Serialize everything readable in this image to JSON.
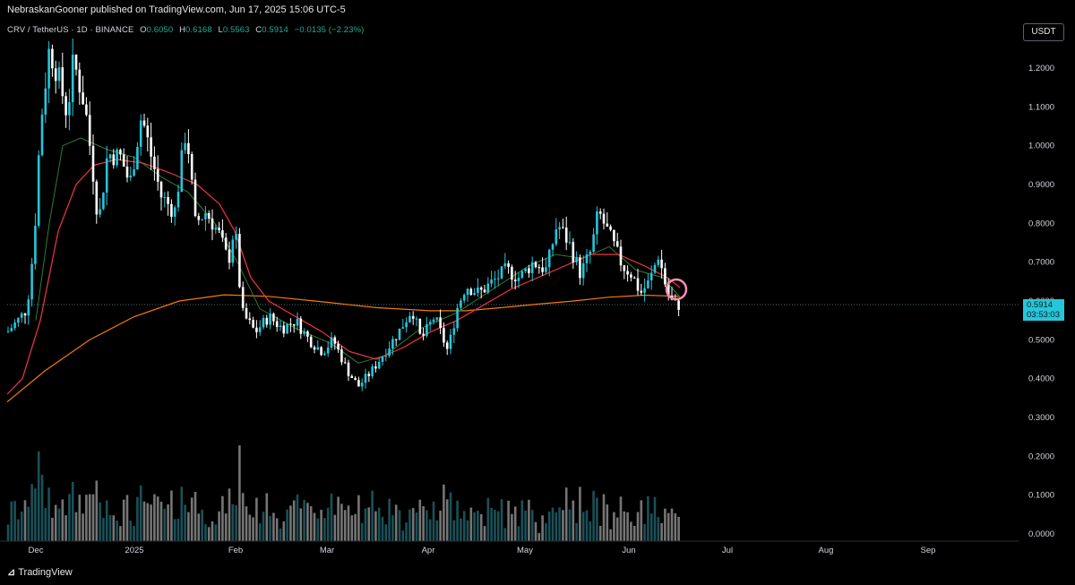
{
  "header": {
    "publisher": "NebraskanGooner published on TradingView.com, Jun 17, 2025 15:06 UTC-5"
  },
  "symbol": {
    "name": "CRV / TetherUS · 1D · BINANCE",
    "open_label": "O",
    "open": "0.6050",
    "high_label": "H",
    "high": "0.6168",
    "low_label": "L",
    "low": "0.5563",
    "close_label": "C",
    "close": "0.5914",
    "change": "−0.0135 (−2.23%)"
  },
  "currency": "USDT",
  "last_price": {
    "price": "0.5914",
    "countdown": "03:53:03"
  },
  "footer": {
    "brand": "TradingView"
  },
  "colors": {
    "up": "#26c6da",
    "down": "#ffffff",
    "ma_short": "#f23645",
    "ma_mid": "#2e7d32",
    "ma_long": "#f57c00",
    "highlight": "#f48fb1"
  },
  "chart_data": {
    "type": "candlestick",
    "symbol": "CRV/USDT",
    "interval": "1D",
    "y_axis": {
      "ticks": [
        "1.2000",
        "1.1000",
        "1.0000",
        "0.9000",
        "0.8000",
        "0.7000",
        "0.6000",
        "0.5000",
        "0.4000",
        "0.3000",
        "0.2000",
        "0.1000",
        "0.0000"
      ],
      "ylim": [
        0.0,
        1.3
      ]
    },
    "x_axis": {
      "ticks": [
        "Dec",
        "2025",
        "Feb",
        "Mar",
        "Apr",
        "May",
        "Jun",
        "Jul",
        "Aug",
        "Sep"
      ]
    },
    "anchors": [
      {
        "x": 8,
        "p": 0.52
      },
      {
        "x": 20,
        "p": 0.55
      },
      {
        "x": 30,
        "p": 0.58
      },
      {
        "x": 38,
        "p": 0.75
      },
      {
        "x": 45,
        "p": 1.05
      },
      {
        "x": 55,
        "p": 1.25
      },
      {
        "x": 65,
        "p": 1.18
      },
      {
        "x": 75,
        "p": 1.08
      },
      {
        "x": 82,
        "p": 1.22
      },
      {
        "x": 95,
        "p": 1.1
      },
      {
        "x": 103,
        "p": 0.95
      },
      {
        "x": 110,
        "p": 0.8
      },
      {
        "x": 120,
        "p": 0.98
      },
      {
        "x": 135,
        "p": 0.97
      },
      {
        "x": 145,
        "p": 0.9
      },
      {
        "x": 158,
        "p": 1.08
      },
      {
        "x": 168,
        "p": 0.98
      },
      {
        "x": 180,
        "p": 0.87
      },
      {
        "x": 195,
        "p": 0.83
      },
      {
        "x": 208,
        "p": 1.05
      },
      {
        "x": 218,
        "p": 0.8
      },
      {
        "x": 230,
        "p": 0.83
      },
      {
        "x": 245,
        "p": 0.77
      },
      {
        "x": 255,
        "p": 0.7
      },
      {
        "x": 262,
        "p": 0.8
      },
      {
        "x": 270,
        "p": 0.57
      },
      {
        "x": 285,
        "p": 0.52
      },
      {
        "x": 300,
        "p": 0.56
      },
      {
        "x": 315,
        "p": 0.53
      },
      {
        "x": 330,
        "p": 0.55
      },
      {
        "x": 345,
        "p": 0.5
      },
      {
        "x": 360,
        "p": 0.47
      },
      {
        "x": 372,
        "p": 0.5
      },
      {
        "x": 388,
        "p": 0.42
      },
      {
        "x": 400,
        "p": 0.38
      },
      {
        "x": 415,
        "p": 0.42
      },
      {
        "x": 430,
        "p": 0.47
      },
      {
        "x": 445,
        "p": 0.52
      },
      {
        "x": 460,
        "p": 0.58
      },
      {
        "x": 470,
        "p": 0.5
      },
      {
        "x": 485,
        "p": 0.56
      },
      {
        "x": 500,
        "p": 0.47
      },
      {
        "x": 510,
        "p": 0.58
      },
      {
        "x": 520,
        "p": 0.64
      },
      {
        "x": 535,
        "p": 0.62
      },
      {
        "x": 550,
        "p": 0.65
      },
      {
        "x": 565,
        "p": 0.68
      },
      {
        "x": 580,
        "p": 0.66
      },
      {
        "x": 595,
        "p": 0.7
      },
      {
        "x": 610,
        "p": 0.68
      },
      {
        "x": 622,
        "p": 0.8
      },
      {
        "x": 635,
        "p": 0.75
      },
      {
        "x": 648,
        "p": 0.67
      },
      {
        "x": 660,
        "p": 0.73
      },
      {
        "x": 668,
        "p": 0.83
      },
      {
        "x": 680,
        "p": 0.77
      },
      {
        "x": 695,
        "p": 0.69
      },
      {
        "x": 705,
        "p": 0.67
      },
      {
        "x": 715,
        "p": 0.62
      },
      {
        "x": 725,
        "p": 0.65
      },
      {
        "x": 735,
        "p": 0.72
      },
      {
        "x": 745,
        "p": 0.62
      },
      {
        "x": 752,
        "p": 0.59
      },
      {
        "x": 759,
        "p": 0.59
      }
    ],
    "ma_long": [
      {
        "x": 8,
        "p": 0.34
      },
      {
        "x": 50,
        "p": 0.42
      },
      {
        "x": 100,
        "p": 0.5
      },
      {
        "x": 150,
        "p": 0.56
      },
      {
        "x": 200,
        "p": 0.6
      },
      {
        "x": 250,
        "p": 0.616
      },
      {
        "x": 300,
        "p": 0.612
      },
      {
        "x": 360,
        "p": 0.598
      },
      {
        "x": 420,
        "p": 0.583
      },
      {
        "x": 480,
        "p": 0.575
      },
      {
        "x": 520,
        "p": 0.575
      },
      {
        "x": 560,
        "p": 0.583
      },
      {
        "x": 600,
        "p": 0.592
      },
      {
        "x": 640,
        "p": 0.6
      },
      {
        "x": 680,
        "p": 0.61
      },
      {
        "x": 720,
        "p": 0.615
      },
      {
        "x": 759,
        "p": 0.612
      }
    ],
    "ma_short": [
      {
        "x": 8,
        "p": 0.36
      },
      {
        "x": 25,
        "p": 0.4
      },
      {
        "x": 45,
        "p": 0.55
      },
      {
        "x": 65,
        "p": 0.78
      },
      {
        "x": 85,
        "p": 0.9
      },
      {
        "x": 105,
        "p": 0.95
      },
      {
        "x": 130,
        "p": 0.965
      },
      {
        "x": 160,
        "p": 0.955
      },
      {
        "x": 190,
        "p": 0.93
      },
      {
        "x": 220,
        "p": 0.9
      },
      {
        "x": 245,
        "p": 0.85
      },
      {
        "x": 262,
        "p": 0.78
      },
      {
        "x": 280,
        "p": 0.66
      },
      {
        "x": 300,
        "p": 0.6
      },
      {
        "x": 330,
        "p": 0.56
      },
      {
        "x": 360,
        "p": 0.52
      },
      {
        "x": 390,
        "p": 0.47
      },
      {
        "x": 420,
        "p": 0.45
      },
      {
        "x": 450,
        "p": 0.48
      },
      {
        "x": 480,
        "p": 0.52
      },
      {
        "x": 510,
        "p": 0.55
      },
      {
        "x": 540,
        "p": 0.59
      },
      {
        "x": 570,
        "p": 0.63
      },
      {
        "x": 600,
        "p": 0.66
      },
      {
        "x": 630,
        "p": 0.69
      },
      {
        "x": 660,
        "p": 0.72
      },
      {
        "x": 690,
        "p": 0.72
      },
      {
        "x": 720,
        "p": 0.69
      },
      {
        "x": 745,
        "p": 0.66
      },
      {
        "x": 759,
        "p": 0.635
      }
    ],
    "ma_mid": [
      {
        "x": 40,
        "p": 0.55
      },
      {
        "x": 55,
        "p": 0.8
      },
      {
        "x": 70,
        "p": 1.0
      },
      {
        "x": 90,
        "p": 1.02
      },
      {
        "x": 120,
        "p": 0.99
      },
      {
        "x": 150,
        "p": 0.97
      },
      {
        "x": 180,
        "p": 0.92
      },
      {
        "x": 210,
        "p": 0.88
      },
      {
        "x": 240,
        "p": 0.8
      },
      {
        "x": 265,
        "p": 0.7
      },
      {
        "x": 290,
        "p": 0.58
      },
      {
        "x": 330,
        "p": 0.53
      },
      {
        "x": 370,
        "p": 0.49
      },
      {
        "x": 400,
        "p": 0.44
      },
      {
        "x": 430,
        "p": 0.46
      },
      {
        "x": 470,
        "p": 0.53
      },
      {
        "x": 510,
        "p": 0.57
      },
      {
        "x": 550,
        "p": 0.63
      },
      {
        "x": 590,
        "p": 0.69
      },
      {
        "x": 620,
        "p": 0.72
      },
      {
        "x": 650,
        "p": 0.71
      },
      {
        "x": 680,
        "p": 0.74
      },
      {
        "x": 710,
        "p": 0.68
      },
      {
        "x": 740,
        "p": 0.66
      },
      {
        "x": 759,
        "p": 0.61
      }
    ],
    "last_price": 0.5914,
    "highlight_price": 0.63
  }
}
